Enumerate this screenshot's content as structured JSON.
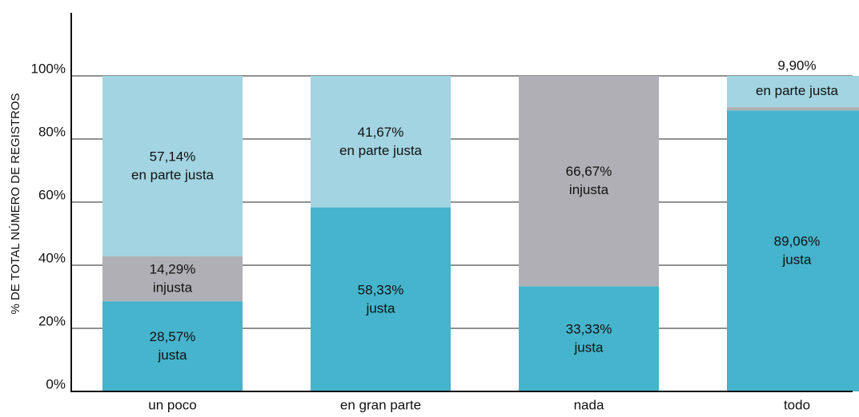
{
  "chart_data": {
    "type": "stacked_bar",
    "y_label": "% DE TOTAL NÚMERO DE REGISTROS",
    "categories": [
      "un poco",
      "en gran parte",
      "nada",
      "todo"
    ],
    "series": [
      {
        "name": "justa",
        "color": "#45b4cc",
        "values": [
          28.57,
          58.33,
          33.33,
          89.06
        ],
        "value_labels": [
          "28,57%",
          "58,33%",
          "33,33%",
          "89,06%"
        ]
      },
      {
        "name": "injusta",
        "color": "#b0afb5",
        "values": [
          14.29,
          0,
          66.67,
          1.04
        ],
        "value_labels": [
          "14,29%",
          null,
          "66,67%",
          null
        ]
      },
      {
        "name": "en parte justa",
        "color": "#a2d4e2",
        "values": [
          57.14,
          41.67,
          0,
          9.9
        ],
        "value_labels": [
          "57,14%",
          "41,67%",
          null,
          "9,90%"
        ]
      }
    ],
    "ylim": [
      0,
      120
    ],
    "yticks": [
      {
        "value": 0,
        "label": "0%"
      },
      {
        "value": 20,
        "label": "20%"
      },
      {
        "value": 40,
        "label": "40%"
      },
      {
        "value": 60,
        "label": "60%"
      },
      {
        "value": 80,
        "label": "80%"
      },
      {
        "value": 100,
        "label": "100%"
      }
    ],
    "grid": true
  }
}
